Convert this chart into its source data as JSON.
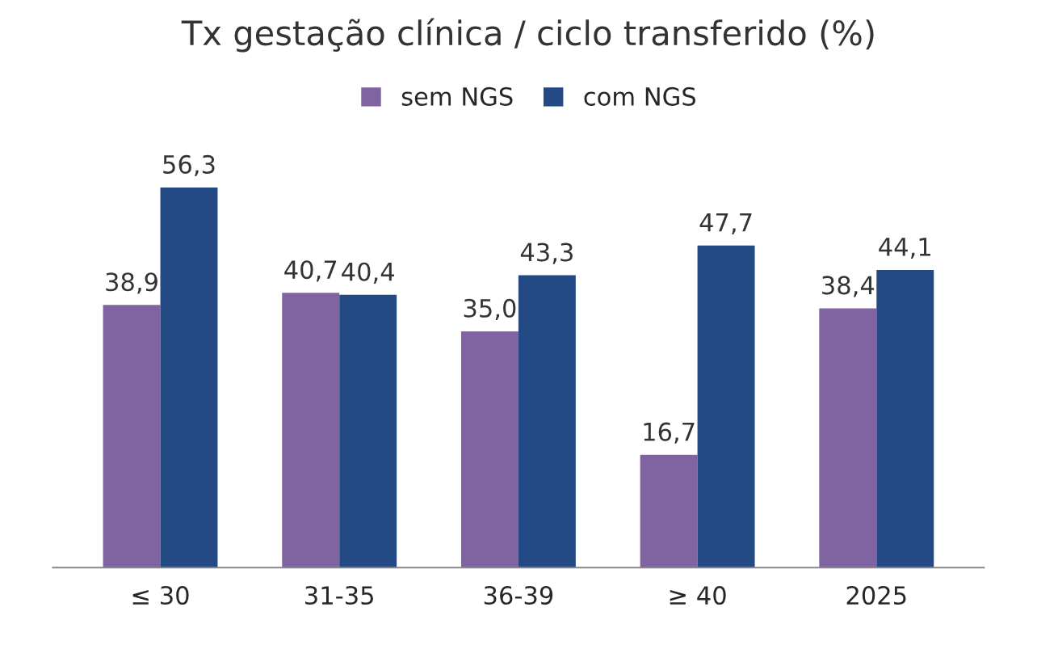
{
  "chart_data": {
    "type": "bar",
    "title": "Tx gestação clínica / ciclo transferido (%)",
    "categories": [
      "≤ 30",
      "31-35",
      "36-39",
      "≥ 40",
      "2025"
    ],
    "series": [
      {
        "name": "sem NGS",
        "color": "#8064a2",
        "values": [
          38.9,
          40.7,
          35.0,
          16.7,
          38.4
        ],
        "value_labels": [
          "38,9",
          "40,7",
          "35,0",
          "16,7",
          "38,4"
        ]
      },
      {
        "name": "com NGS",
        "color": "#244a86",
        "values": [
          56.3,
          40.4,
          43.3,
          47.7,
          44.1
        ],
        "value_labels": [
          "56,3",
          "40,4",
          "43,3",
          "47,7",
          "44,1"
        ]
      }
    ],
    "legend": "top",
    "grid": false
  }
}
